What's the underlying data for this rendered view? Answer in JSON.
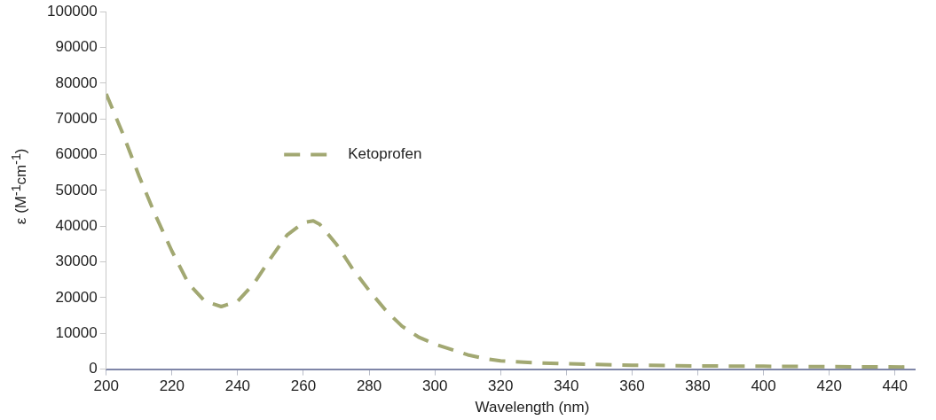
{
  "chart_data": {
    "type": "line",
    "xlabel": "Wavelength (nm)",
    "ylabel": "ε (M$^{-1}$cm$^{-1}$)",
    "xlim": [
      200,
      446
    ],
    "xticks": [
      200,
      220,
      240,
      260,
      280,
      300,
      320,
      340,
      360,
      380,
      400,
      420,
      440
    ],
    "ylim": [
      0,
      100000
    ],
    "yticks": [
      0,
      10000,
      20000,
      30000,
      40000,
      50000,
      60000,
      70000,
      80000,
      90000,
      100000
    ],
    "grid": false,
    "legend": "top",
    "line_style": "dashed",
    "marker": "none",
    "series": [
      {
        "name": "Ketoprofen",
        "color": "#a2a872",
        "x": [
          200,
          205,
          210,
          215,
          220,
          225,
          230,
          235,
          240,
          245,
          250,
          255,
          260,
          263,
          265,
          270,
          275,
          280,
          285,
          290,
          295,
          300,
          305,
          310,
          315,
          320,
          330,
          340,
          360,
          380,
          400,
          420,
          446
        ],
        "values": [
          77000,
          66000,
          54000,
          43000,
          33000,
          24000,
          19000,
          17500,
          19000,
          24000,
          31000,
          37500,
          41000,
          41500,
          40500,
          35000,
          28000,
          22000,
          16500,
          12000,
          9000,
          7000,
          5500,
          4000,
          3000,
          2300,
          1800,
          1500,
          1100,
          900,
          800,
          700,
          600
        ]
      }
    ]
  }
}
